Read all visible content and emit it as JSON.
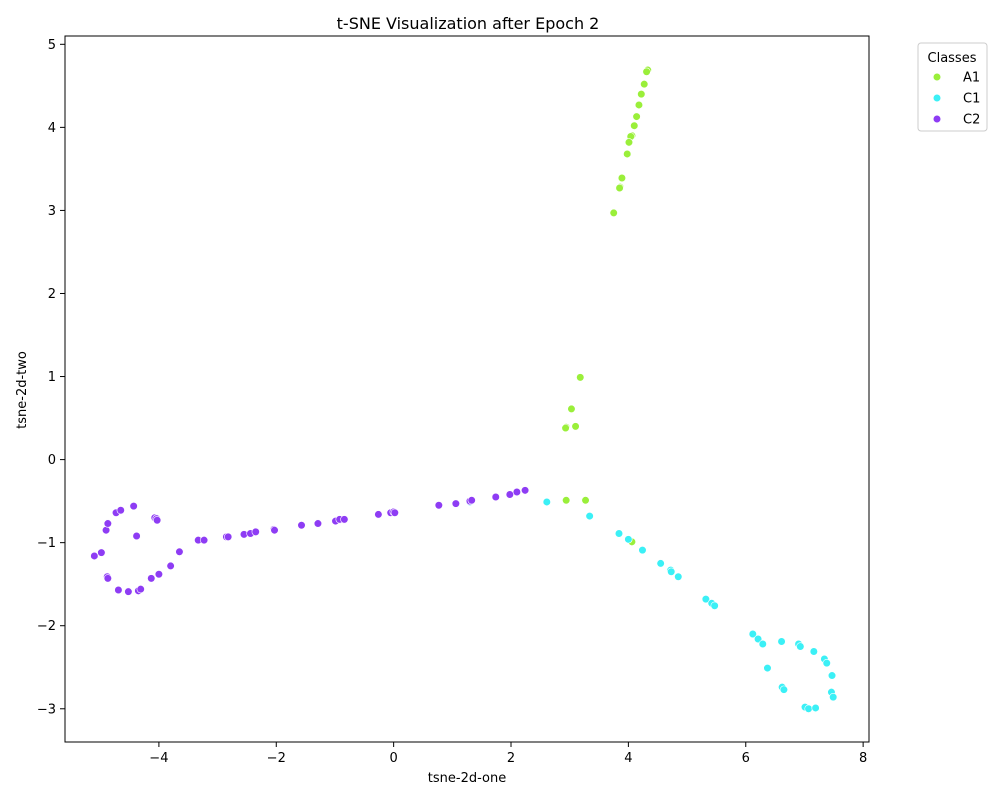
{
  "chart_data": {
    "type": "scatter",
    "title": "t-SNE Visualization after Epoch 2",
    "xlabel": "tsne-2d-one",
    "ylabel": "tsne-2d-two",
    "xlim": [
      -5.6,
      8.1
    ],
    "ylim": [
      -3.4,
      5.1
    ],
    "xticks": [
      -4,
      -2,
      0,
      2,
      4,
      6,
      8
    ],
    "yticks": [
      -3,
      -2,
      -1,
      0,
      1,
      2,
      3,
      4,
      5
    ],
    "xtick_labels": [
      "−4",
      "−2",
      "0",
      "2",
      "4",
      "6",
      "8"
    ],
    "ytick_labels": [
      "−3",
      "−2",
      "−1",
      "0",
      "1",
      "2",
      "3",
      "4",
      "5"
    ],
    "grid": false,
    "legend": {
      "title": "Classes",
      "placement": "outside-top-right"
    },
    "series": [
      {
        "name": "A1",
        "color": "#9aef3a",
        "points": [
          [
            4.33,
            4.69
          ],
          [
            4.31,
            4.67
          ],
          [
            4.27,
            4.52
          ],
          [
            4.22,
            4.4
          ],
          [
            4.18,
            4.27
          ],
          [
            4.14,
            4.13
          ],
          [
            4.1,
            4.02
          ],
          [
            4.06,
            3.9
          ],
          [
            4.04,
            3.89
          ],
          [
            4.01,
            3.82
          ],
          [
            3.98,
            3.68
          ],
          [
            3.89,
            3.39
          ],
          [
            3.86,
            3.28
          ],
          [
            3.85,
            3.27
          ],
          [
            3.75,
            2.97
          ],
          [
            3.18,
            0.99
          ],
          [
            3.03,
            0.61
          ],
          [
            3.1,
            0.4
          ],
          [
            2.94,
            0.39
          ],
          [
            2.93,
            0.38
          ],
          [
            2.94,
            -0.49
          ],
          [
            3.27,
            -0.49
          ],
          [
            4.06,
            -0.99
          ]
        ]
      },
      {
        "name": "C1",
        "color": "#3bf0f6",
        "points": [
          [
            1.3,
            -0.51
          ],
          [
            2.61,
            -0.51
          ],
          [
            3.34,
            -0.68
          ],
          [
            3.84,
            -0.89
          ],
          [
            4.0,
            -0.96
          ],
          [
            4.24,
            -1.09
          ],
          [
            4.55,
            -1.25
          ],
          [
            4.72,
            -1.33
          ],
          [
            4.73,
            -1.35
          ],
          [
            4.85,
            -1.41
          ],
          [
            5.32,
            -1.68
          ],
          [
            5.42,
            -1.73
          ],
          [
            5.47,
            -1.76
          ],
          [
            6.12,
            -2.1
          ],
          [
            6.21,
            -2.16
          ],
          [
            6.29,
            -2.22
          ],
          [
            6.61,
            -2.19
          ],
          [
            6.9,
            -2.22
          ],
          [
            6.93,
            -2.25
          ],
          [
            7.16,
            -2.31
          ],
          [
            6.37,
            -2.51
          ],
          [
            7.34,
            -2.4
          ],
          [
            7.38,
            -2.45
          ],
          [
            7.47,
            -2.6
          ],
          [
            6.62,
            -2.74
          ],
          [
            6.65,
            -2.77
          ],
          [
            7.46,
            -2.8
          ],
          [
            7.49,
            -2.86
          ],
          [
            7.01,
            -2.98
          ],
          [
            7.07,
            -3.0
          ],
          [
            7.19,
            -2.99
          ]
        ]
      },
      {
        "name": "C2",
        "color": "#8e3cf4",
        "points": [
          [
            -5.1,
            -1.16
          ],
          [
            -4.98,
            -1.12
          ],
          [
            -4.9,
            -0.85
          ],
          [
            -4.87,
            -0.77
          ],
          [
            -4.73,
            -0.64
          ],
          [
            -4.65,
            -0.61
          ],
          [
            -4.43,
            -0.56
          ],
          [
            -4.38,
            -0.92
          ],
          [
            -4.07,
            -0.7
          ],
          [
            -4.04,
            -0.71
          ],
          [
            -4.03,
            -0.73
          ],
          [
            -3.65,
            -1.11
          ],
          [
            -3.8,
            -1.28
          ],
          [
            -4.0,
            -1.38
          ],
          [
            -4.13,
            -1.43
          ],
          [
            -4.35,
            -1.58
          ],
          [
            -4.31,
            -1.56
          ],
          [
            -4.52,
            -1.59
          ],
          [
            -4.69,
            -1.57
          ],
          [
            -4.88,
            -1.41
          ],
          [
            -4.87,
            -1.43
          ],
          [
            -3.33,
            -0.97
          ],
          [
            -3.23,
            -0.97
          ],
          [
            -2.85,
            -0.93
          ],
          [
            -2.82,
            -0.93
          ],
          [
            -2.55,
            -0.9
          ],
          [
            -2.44,
            -0.89
          ],
          [
            -2.35,
            -0.87
          ],
          [
            -2.04,
            -0.84
          ],
          [
            -2.03,
            -0.85
          ],
          [
            -1.57,
            -0.79
          ],
          [
            -1.29,
            -0.77
          ],
          [
            -0.99,
            -0.74
          ],
          [
            -0.92,
            -0.72
          ],
          [
            -0.84,
            -0.72
          ],
          [
            -0.26,
            -0.66
          ],
          [
            -0.05,
            -0.64
          ],
          [
            0.0,
            -0.63
          ],
          [
            0.02,
            -0.64
          ],
          [
            0.77,
            -0.55
          ],
          [
            1.06,
            -0.53
          ],
          [
            1.3,
            -0.5
          ],
          [
            1.33,
            -0.49
          ],
          [
            1.74,
            -0.45
          ],
          [
            1.98,
            -0.42
          ],
          [
            2.1,
            -0.39
          ],
          [
            2.24,
            -0.37
          ]
        ]
      }
    ]
  }
}
